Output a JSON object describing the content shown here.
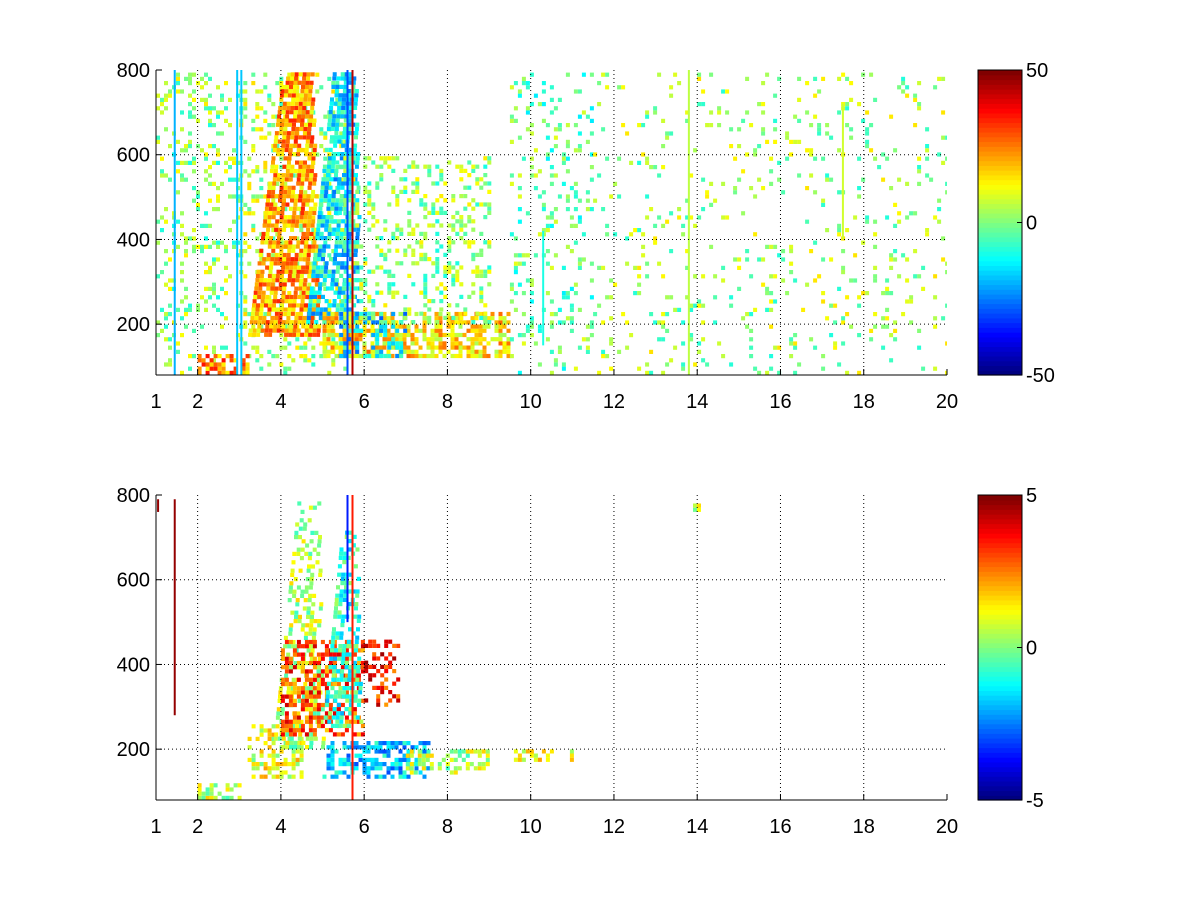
{
  "chart_data": [
    {
      "type": "heatmap",
      "title": "",
      "xlabel": "",
      "ylabel": "",
      "x_ticks": [
        1,
        2,
        4,
        6,
        8,
        10,
        12,
        14,
        16,
        18,
        20
      ],
      "y_ticks": [
        200,
        400,
        600,
        800
      ],
      "xlim": [
        1,
        20
      ],
      "ylim": [
        80,
        800
      ],
      "grid": true,
      "colormap": "jet",
      "colorbar": {
        "min": -50,
        "max": 50,
        "ticks": [
          50,
          0,
          -50
        ]
      },
      "features": [
        {
          "shape": "rect",
          "x": [
            1.0,
            3.0
          ],
          "y": [
            80,
            800
          ],
          "value": 2,
          "density": 0.18
        },
        {
          "shape": "rect",
          "x": [
            3.0,
            5.5
          ],
          "y": [
            80,
            800
          ],
          "value": 4,
          "density": 0.22
        },
        {
          "shape": "wedge",
          "x": [
            3.2,
            4.9
          ],
          "y": [
            170,
            800
          ],
          "value": 22,
          "density": 0.75
        },
        {
          "shape": "wedge",
          "x": [
            4.6,
            5.9
          ],
          "y": [
            200,
            800
          ],
          "value": -14,
          "density": 0.7
        },
        {
          "shape": "rect",
          "x": [
            2.0,
            3.2
          ],
          "y": [
            80,
            130
          ],
          "value": 25,
          "density": 0.65
        },
        {
          "shape": "rect",
          "x": [
            5.0,
            9.5
          ],
          "y": [
            120,
            230
          ],
          "value": 16,
          "density": 0.65
        },
        {
          "shape": "rect",
          "x": [
            5.4,
            7.0
          ],
          "y": [
            120,
            230
          ],
          "value": -16,
          "density": 0.35
        },
        {
          "shape": "rect",
          "x": [
            5.5,
            9.0
          ],
          "y": [
            200,
            600
          ],
          "value": 2,
          "density": 0.25
        },
        {
          "shape": "rect",
          "x": [
            9.5,
            11.5
          ],
          "y": [
            80,
            800
          ],
          "value": -2,
          "density": 0.15
        },
        {
          "shape": "rect",
          "x": [
            11.5,
            20.0
          ],
          "y": [
            80,
            800
          ],
          "value": 3,
          "density": 0.08
        }
      ],
      "lines": [
        {
          "x": 5.72,
          "y": [
            80,
            800
          ],
          "value": 45
        },
        {
          "x": 1.45,
          "y": [
            80,
            800
          ],
          "value": -20
        },
        {
          "x": 2.95,
          "y": [
            80,
            800
          ],
          "value": -18
        },
        {
          "x": 3.05,
          "y": [
            80,
            800
          ],
          "value": -18
        },
        {
          "x": 5.6,
          "y": [
            80,
            800
          ],
          "value": -30
        },
        {
          "x": 17.5,
          "y": [
            400,
            720
          ],
          "value": 8
        },
        {
          "x": 13.8,
          "y": [
            80,
            800
          ],
          "value": 6
        },
        {
          "x": 10.3,
          "y": [
            150,
            420
          ],
          "value": -10
        }
      ]
    },
    {
      "type": "heatmap",
      "title": "",
      "xlabel": "",
      "ylabel": "",
      "x_ticks": [
        1,
        2,
        4,
        6,
        8,
        10,
        12,
        14,
        16,
        18,
        20
      ],
      "y_ticks": [
        200,
        400,
        600,
        800
      ],
      "xlim": [
        1,
        20
      ],
      "ylim": [
        80,
        800
      ],
      "grid": true,
      "colormap": "jet",
      "colorbar": {
        "min": -5,
        "max": 5,
        "ticks": [
          5,
          0,
          -5
        ]
      },
      "features": [
        {
          "shape": "rect",
          "x": [
            2.0,
            3.0
          ],
          "y": [
            80,
            120
          ],
          "value": 0.5,
          "density": 0.6
        },
        {
          "shape": "rect",
          "x": [
            3.2,
            4.5
          ],
          "y": [
            130,
            260
          ],
          "value": 1.0,
          "density": 0.5
        },
        {
          "shape": "wedge",
          "x": [
            3.8,
            5.0
          ],
          "y": [
            200,
            790
          ],
          "value": 0.5,
          "density": 0.45
        },
        {
          "shape": "rect",
          "x": [
            4.0,
            6.0
          ],
          "y": [
            230,
            460
          ],
          "value": 3.0,
          "density": 0.5
        },
        {
          "shape": "wedge",
          "x": [
            5.0,
            5.9
          ],
          "y": [
            250,
            720
          ],
          "value": -0.8,
          "density": 0.5
        },
        {
          "shape": "rect",
          "x": [
            5.0,
            7.5
          ],
          "y": [
            130,
            220
          ],
          "value": -1.8,
          "density": 0.55
        },
        {
          "shape": "rect",
          "x": [
            7.0,
            9.0
          ],
          "y": [
            140,
            200
          ],
          "value": 0.5,
          "density": 0.45
        },
        {
          "shape": "rect",
          "x": [
            9.5,
            11.0
          ],
          "y": [
            170,
            200
          ],
          "value": 1.0,
          "density": 0.4
        },
        {
          "shape": "rect",
          "x": [
            6.0,
            6.8
          ],
          "y": [
            300,
            460
          ],
          "value": 3.5,
          "density": 0.35
        },
        {
          "shape": "rect",
          "x": [
            13.9,
            14.0
          ],
          "y": [
            760,
            780
          ],
          "value": 0.5,
          "density": 1.0
        }
      ],
      "lines": [
        {
          "x": 1.45,
          "y": [
            280,
            790
          ],
          "value": 4.8
        },
        {
          "x": 5.72,
          "y": [
            80,
            800
          ],
          "value": 3.5
        },
        {
          "x": 5.6,
          "y": [
            500,
            800
          ],
          "value": -3.5
        },
        {
          "x": 1.05,
          "y": [
            760,
            790
          ],
          "value": 4.8
        }
      ]
    }
  ]
}
